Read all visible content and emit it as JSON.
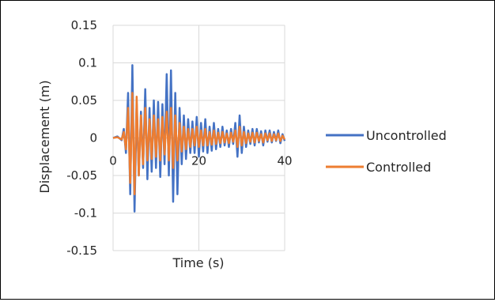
{
  "chart_data": {
    "type": "line",
    "title": "",
    "xlabel": "Time (s)",
    "ylabel": "Displacement (m)",
    "xlim": [
      0,
      40
    ],
    "ylim": [
      -0.15,
      0.15
    ],
    "xticks": [
      0,
      20,
      40
    ],
    "yticks": [
      0.15,
      0.1,
      0.05,
      0,
      -0.05,
      -0.1,
      -0.15
    ],
    "xtick_labels": [
      "0",
      "20",
      "40"
    ],
    "ytick_labels": [
      "0.15",
      "0.1",
      "0.05",
      "0",
      "-0.05",
      "-0.1",
      "-0.15"
    ],
    "grid": true,
    "legend_position": "right",
    "colors": {
      "Uncontrolled": "#4472C4",
      "Controlled": "#ED7D31"
    },
    "series": [
      {
        "name": "Uncontrolled",
        "color": "#4472C4",
        "x": [
          0,
          1,
          2,
          2.5,
          3,
          3.5,
          4,
          4.5,
          5,
          5.5,
          6,
          6.5,
          7,
          7.5,
          8,
          8.5,
          9,
          9.5,
          10,
          10.5,
          11,
          11.5,
          12,
          12.5,
          13,
          13.5,
          14,
          14.5,
          15,
          15.5,
          16,
          16.5,
          17,
          17.5,
          18,
          18.5,
          19,
          19.5,
          20,
          20.5,
          21,
          21.5,
          22,
          22.5,
          23,
          23.5,
          24,
          24.5,
          25,
          25.5,
          26,
          26.5,
          27,
          27.5,
          28,
          28.5,
          29,
          29.5,
          30,
          30.5,
          31,
          31.5,
          32,
          32.5,
          33,
          33.5,
          34,
          34.5,
          35,
          35.5,
          36,
          36.5,
          37,
          37.5,
          38,
          38.5,
          39,
          39.5,
          40
        ],
        "values": [
          0,
          0.002,
          -0.003,
          0.012,
          -0.02,
          0.06,
          -0.075,
          0.097,
          -0.098,
          0.045,
          -0.05,
          0.035,
          -0.04,
          0.065,
          -0.055,
          0.04,
          -0.045,
          0.05,
          -0.04,
          0.048,
          -0.052,
          0.045,
          -0.035,
          0.085,
          -0.05,
          0.09,
          -0.085,
          0.06,
          -0.075,
          0.04,
          -0.035,
          0.03,
          -0.028,
          0.025,
          -0.02,
          0.022,
          -0.02,
          0.028,
          -0.025,
          0.02,
          -0.018,
          0.025,
          -0.02,
          0.015,
          -0.017,
          0.02,
          -0.015,
          0.012,
          -0.012,
          0.015,
          -0.01,
          0.01,
          -0.012,
          0.012,
          -0.008,
          0.02,
          -0.025,
          0.03,
          -0.02,
          0.015,
          -0.012,
          0.01,
          -0.008,
          0.012,
          -0.01,
          0.012,
          -0.006,
          0.009,
          -0.01,
          0.01,
          -0.005,
          0.01,
          -0.006,
          0.008,
          -0.004,
          0.01,
          -0.007,
          0.005,
          -0.004
        ]
      },
      {
        "name": "Controlled",
        "color": "#ED7D31",
        "x": [
          0,
          1,
          2,
          2.5,
          3,
          3.5,
          4,
          4.5,
          5,
          5.5,
          6,
          6.5,
          7,
          7.5,
          8,
          8.5,
          9,
          9.5,
          10,
          10.5,
          11,
          11.5,
          12,
          12.5,
          13,
          13.5,
          14,
          14.5,
          15,
          15.5,
          16,
          16.5,
          17,
          17.5,
          18,
          18.5,
          19,
          19.5,
          20,
          20.5,
          21,
          21.5,
          22,
          22.5,
          23,
          23.5,
          24,
          24.5,
          25,
          25.5,
          26,
          26.5,
          27,
          27.5,
          28,
          28.5,
          29,
          29.5,
          30,
          30.5,
          31,
          31.5,
          32,
          32.5,
          33,
          33.5,
          34,
          34.5,
          35,
          35.5,
          36,
          36.5,
          37,
          37.5,
          38,
          38.5,
          39,
          39.5,
          40
        ],
        "values": [
          0,
          0.001,
          -0.002,
          0.008,
          -0.015,
          0.04,
          -0.06,
          0.06,
          -0.075,
          0.055,
          -0.05,
          0.03,
          -0.035,
          0.04,
          -0.03,
          0.025,
          -0.028,
          0.03,
          -0.025,
          0.025,
          -0.03,
          0.028,
          -0.022,
          0.035,
          -0.03,
          0.04,
          -0.04,
          0.03,
          -0.03,
          0.02,
          -0.018,
          0.015,
          -0.015,
          0.012,
          -0.012,
          0.012,
          -0.01,
          0.015,
          -0.012,
          0.01,
          -0.01,
          0.012,
          -0.01,
          0.008,
          -0.009,
          0.01,
          -0.008,
          0.007,
          -0.007,
          0.008,
          -0.006,
          0.006,
          -0.007,
          0.007,
          -0.005,
          0.01,
          -0.012,
          0.015,
          -0.01,
          0.008,
          -0.007,
          0.006,
          -0.005,
          0.007,
          -0.006,
          0.007,
          -0.004,
          0.005,
          -0.006,
          0.006,
          -0.003,
          0.006,
          -0.004,
          0.005,
          -0.003,
          0.006,
          -0.004,
          0.003,
          -0.002
        ]
      }
    ]
  }
}
